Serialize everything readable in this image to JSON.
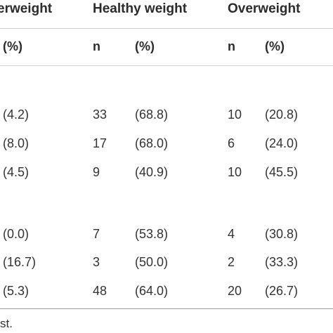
{
  "header": {
    "groups": [
      "erweight",
      "Healthy weight",
      "Overweight"
    ],
    "sub_columns": [
      "(%)",
      "n",
      "(%)",
      "n",
      "(%)"
    ]
  },
  "rows": [
    [
      "(4.2)",
      "33",
      "(68.8)",
      "10",
      "(20.8)"
    ],
    [
      "(8.0)",
      "17",
      "(68.0)",
      "6",
      "(24.0)"
    ],
    [
      "(4.5)",
      "9",
      "(40.9)",
      "10",
      "(45.5)"
    ],
    [
      "(0.0)",
      "7",
      "(53.8)",
      "4",
      "(30.8)"
    ],
    [
      "(16.7)",
      "3",
      "(50.0)",
      "2",
      "(33.3)"
    ],
    [
      "(5.3)",
      "48",
      "(64.0)",
      "20",
      "(26.7)"
    ]
  ],
  "footnote": "st."
}
